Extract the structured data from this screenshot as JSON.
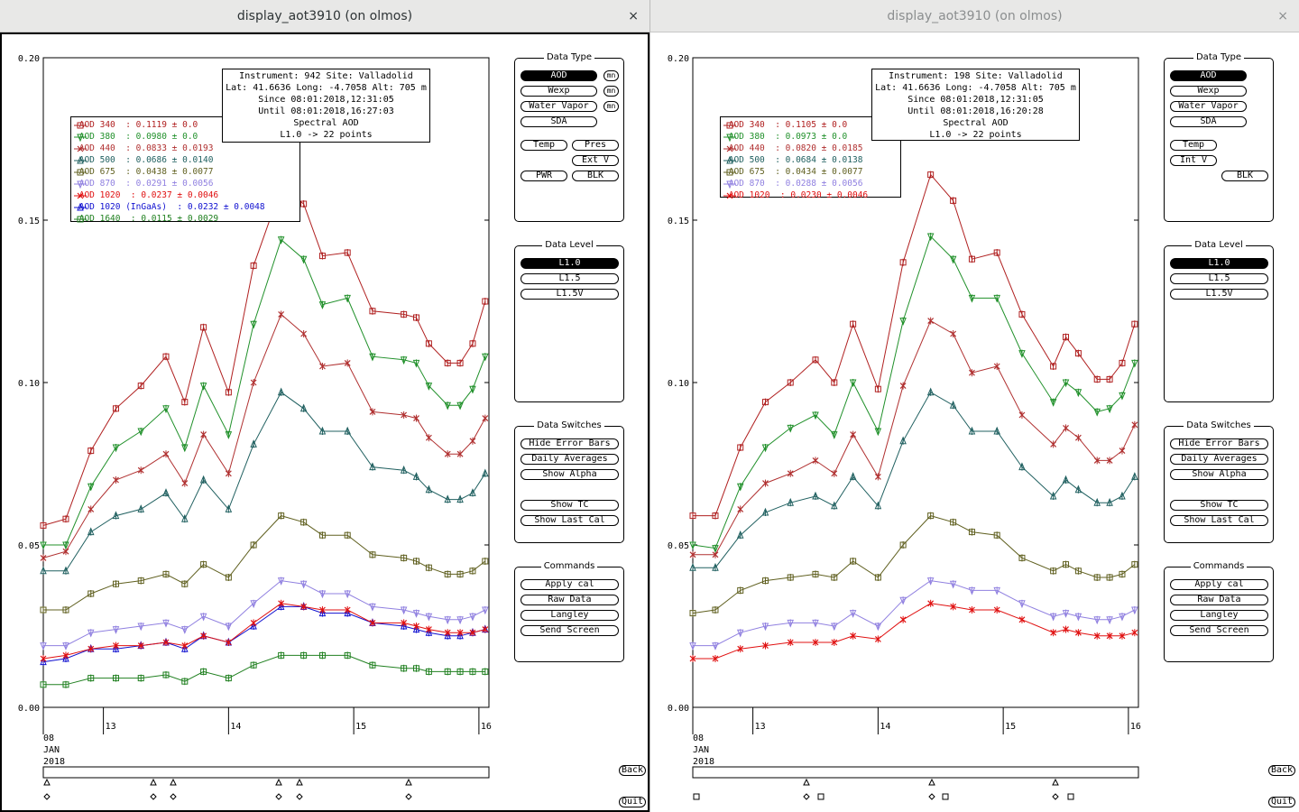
{
  "windows": [
    {
      "title": "display_aot3910 (on olmos)",
      "close": "×",
      "info": [
        "Instrument: 942 Site: Valladolid",
        "Lat: 41.6636 Long: -4.7058 Alt: 705 m",
        "Since 08:01:2018,12:31:05",
        "Until 08:01:2018,16:27:03",
        "Spectral AOD",
        "L1.0 -> 22 points"
      ],
      "legend": [
        {
          "label": "AOD 340  : 0.1119 ± 0.0",
          "color": "#b02020",
          "marker": "square"
        },
        {
          "label": "AOD 380  : 0.0980 ± 0.0",
          "color": "#20902a",
          "marker": "tri-down"
        },
        {
          "label": "AOD 440  : 0.0833 ± 0.0193",
          "color": "#b03030",
          "marker": "x"
        },
        {
          "label": "AOD 500  : 0.0686 ± 0.0140",
          "color": "#206060",
          "marker": "tri-up"
        },
        {
          "label": "AOD 675  : 0.0438 ± 0.0077",
          "color": "#606020",
          "marker": "square"
        },
        {
          "label": "AOD 870  : 0.0291 ± 0.0056",
          "color": "#9080e0",
          "marker": "tri-down"
        },
        {
          "label": "AOD 1020  : 0.0237 ± 0.0046",
          "color": "#e01010",
          "marker": "x"
        },
        {
          "label": "AOD 1020 (InGaAs)  : 0.0232 ± 0.0048",
          "color": "#1010d0",
          "marker": "tri-up"
        },
        {
          "label": "AOD 1640  : 0.0115 ± 0.0029",
          "color": "#208020",
          "marker": "square"
        }
      ],
      "data_type": {
        "title": "Data Type",
        "buttons": [
          {
            "label": "AOD",
            "mn": "mn",
            "selected": true
          },
          {
            "label": "Wexp",
            "mn": "mn"
          },
          {
            "label": "Water Vapor",
            "mn": "mn"
          },
          {
            "label": "SDA"
          },
          {
            "label": "Temp"
          },
          {
            "label": "Pres"
          },
          {
            "label": "Ext V"
          },
          {
            "label": "PWR"
          },
          {
            "label": "BLK"
          }
        ]
      },
      "data_level": {
        "title": "Data Level",
        "buttons": [
          "L1.0",
          "L1.5",
          "L1.5V"
        ]
      },
      "data_switches": {
        "title": "Data Switches",
        "buttons": [
          "Hide Error Bars",
          "Daily Averages",
          "Show Alpha",
          "Show TC",
          "Show Last Cal"
        ]
      },
      "commands": {
        "title": "Commands",
        "buttons": [
          "Apply cal",
          "Raw Data",
          "Langley",
          "Send Screen"
        ]
      },
      "back": "Back",
      "quit": "Quit"
    },
    {
      "title": "display_aot3910 (on olmos)",
      "close": "×",
      "info": [
        "Instrument: 198 Site: Valladolid",
        "Lat: 41.6636 Long: -4.7058 Alt: 705 m",
        "Since 08:01:2018,12:31:05",
        "Until 08:01:2018,16:20:28",
        "Spectral AOD",
        "L1.0 -> 22 points"
      ],
      "legend": [
        {
          "label": "AOD 340  : 0.1105 ± 0.0",
          "color": "#b02020",
          "marker": "square"
        },
        {
          "label": "AOD 380  : 0.0973 ± 0.0",
          "color": "#20902a",
          "marker": "tri-down"
        },
        {
          "label": "AOD 440  : 0.0820 ± 0.0185",
          "color": "#b03030",
          "marker": "x"
        },
        {
          "label": "AOD 500  : 0.0684 ± 0.0138",
          "color": "#206060",
          "marker": "tri-up"
        },
        {
          "label": "AOD 675  : 0.0434 ± 0.0077",
          "color": "#606020",
          "marker": "square"
        },
        {
          "label": "AOD 870  : 0.0288 ± 0.0056",
          "color": "#9080e0",
          "marker": "tri-down"
        },
        {
          "label": "AOD 1020  : 0.0230 ± 0.0046",
          "color": "#e01010",
          "marker": "x"
        }
      ],
      "data_type": {
        "title": "Data Type",
        "buttons": [
          {
            "label": "AOD",
            "selected": true
          },
          {
            "label": "Wexp"
          },
          {
            "label": "Water Vapor"
          },
          {
            "label": "SDA"
          },
          {
            "label": "Temp"
          },
          {
            "label": "Int V"
          },
          {
            "label": "BLK"
          }
        ]
      },
      "data_level": {
        "title": "Data Level",
        "buttons": [
          "L1.0",
          "L1.5",
          "L1.5V"
        ]
      },
      "data_switches": {
        "title": "Data Switches",
        "buttons": [
          "Hide Error Bars",
          "Daily Averages",
          "Show Alpha",
          "Show TC",
          "Show Last Cal"
        ]
      },
      "commands": {
        "title": "Commands",
        "buttons": [
          "Apply cal",
          "Raw Data",
          "Langley",
          "Send Screen"
        ]
      },
      "back": "Back",
      "quit": "Quit"
    }
  ],
  "chart_data": [
    {
      "type": "line",
      "ylim": [
        0,
        0.2
      ],
      "yticks": [
        "0.00",
        "0.05",
        "0.10",
        "0.15",
        "0.20"
      ],
      "xlabels": {
        "start": [
          "08",
          "JAN",
          "2018"
        ],
        "ticks": [
          "13",
          "14",
          "15",
          "16"
        ]
      },
      "x": [
        12.52,
        12.7,
        12.9,
        13.1,
        13.3,
        13.5,
        13.65,
        13.8,
        14.0,
        14.2,
        14.42,
        14.6,
        14.75,
        14.95,
        15.15,
        15.4,
        15.5,
        15.6,
        15.75,
        15.85,
        15.95,
        16.05
      ],
      "series": [
        {
          "name": "AOD 340",
          "color": "#b02020",
          "marker": "square",
          "values": [
            0.056,
            0.058,
            0.079,
            0.092,
            0.099,
            0.108,
            0.094,
            0.117,
            0.097,
            0.136,
            0.16,
            0.155,
            0.139,
            0.14,
            0.122,
            0.121,
            0.12,
            0.112,
            0.106,
            0.106,
            0.112,
            0.125
          ]
        },
        {
          "name": "AOD 380",
          "color": "#20902a",
          "marker": "tri-down",
          "values": [
            0.05,
            0.05,
            0.068,
            0.08,
            0.085,
            0.092,
            0.08,
            0.099,
            0.084,
            0.118,
            0.144,
            0.138,
            0.124,
            0.126,
            0.108,
            0.107,
            0.106,
            0.099,
            0.093,
            0.093,
            0.098,
            0.108
          ]
        },
        {
          "name": "AOD 440",
          "color": "#b03030",
          "marker": "x",
          "values": [
            0.046,
            0.048,
            0.061,
            0.07,
            0.073,
            0.078,
            0.069,
            0.084,
            0.072,
            0.1,
            0.121,
            0.115,
            0.105,
            0.106,
            0.091,
            0.09,
            0.089,
            0.083,
            0.078,
            0.078,
            0.082,
            0.089
          ]
        },
        {
          "name": "AOD 500",
          "color": "#206060",
          "marker": "tri-up",
          "values": [
            0.042,
            0.042,
            0.054,
            0.059,
            0.061,
            0.066,
            0.058,
            0.07,
            0.061,
            0.081,
            0.097,
            0.092,
            0.085,
            0.085,
            0.074,
            0.073,
            0.071,
            0.067,
            0.064,
            0.064,
            0.066,
            0.072
          ]
        },
        {
          "name": "AOD 675",
          "color": "#606020",
          "marker": "square",
          "values": [
            0.03,
            0.03,
            0.035,
            0.038,
            0.039,
            0.041,
            0.038,
            0.044,
            0.04,
            0.05,
            0.059,
            0.057,
            0.053,
            0.053,
            0.047,
            0.046,
            0.045,
            0.043,
            0.041,
            0.041,
            0.042,
            0.045
          ]
        },
        {
          "name": "AOD 870",
          "color": "#9080e0",
          "marker": "tri-down",
          "values": [
            0.019,
            0.019,
            0.023,
            0.024,
            0.025,
            0.026,
            0.024,
            0.028,
            0.025,
            0.032,
            0.039,
            0.038,
            0.035,
            0.035,
            0.031,
            0.03,
            0.029,
            0.028,
            0.027,
            0.027,
            0.028,
            0.03
          ]
        },
        {
          "name": "AOD 1020",
          "color": "#e01010",
          "marker": "x",
          "values": [
            0.015,
            0.016,
            0.018,
            0.019,
            0.019,
            0.02,
            0.019,
            0.022,
            0.02,
            0.026,
            0.032,
            0.031,
            0.03,
            0.03,
            0.026,
            0.026,
            0.025,
            0.024,
            0.023,
            0.023,
            0.023,
            0.024
          ]
        },
        {
          "name": "AOD 1020 (InGaAs)",
          "color": "#1010d0",
          "marker": "tri-up",
          "values": [
            0.014,
            0.015,
            0.018,
            0.018,
            0.019,
            0.02,
            0.018,
            0.022,
            0.02,
            0.025,
            0.031,
            0.031,
            0.029,
            0.029,
            0.026,
            0.025,
            0.024,
            0.023,
            0.022,
            0.022,
            0.023,
            0.024
          ]
        },
        {
          "name": "AOD 1640",
          "color": "#208020",
          "marker": "square",
          "values": [
            0.007,
            0.007,
            0.009,
            0.009,
            0.009,
            0.01,
            0.008,
            0.011,
            0.009,
            0.013,
            0.016,
            0.016,
            0.016,
            0.016,
            0.013,
            0.012,
            0.012,
            0.011,
            0.011,
            0.011,
            0.011,
            0.011
          ]
        }
      ]
    },
    {
      "type": "line",
      "ylim": [
        0,
        0.2
      ],
      "yticks": [
        "0.00",
        "0.05",
        "0.10",
        "0.15",
        "0.20"
      ],
      "xlabels": {
        "start": [
          "08",
          "JAN",
          "2018"
        ],
        "ticks": [
          "13",
          "14",
          "15",
          "16"
        ]
      },
      "x": [
        12.52,
        12.7,
        12.9,
        13.1,
        13.3,
        13.5,
        13.65,
        13.8,
        14.0,
        14.2,
        14.42,
        14.6,
        14.75,
        14.95,
        15.15,
        15.4,
        15.5,
        15.6,
        15.75,
        15.85,
        15.95,
        16.05
      ],
      "series": [
        {
          "name": "AOD 340",
          "color": "#b02020",
          "marker": "square",
          "values": [
            0.059,
            0.059,
            0.08,
            0.094,
            0.1,
            0.107,
            0.1,
            0.118,
            0.098,
            0.137,
            0.164,
            0.156,
            0.138,
            0.14,
            0.121,
            0.105,
            0.114,
            0.109,
            0.101,
            0.101,
            0.106,
            0.118
          ]
        },
        {
          "name": "AOD 380",
          "color": "#20902a",
          "marker": "tri-down",
          "values": [
            0.05,
            0.049,
            0.068,
            0.08,
            0.086,
            0.09,
            0.084,
            0.1,
            0.085,
            0.119,
            0.145,
            0.138,
            0.126,
            0.126,
            0.109,
            0.094,
            0.1,
            0.097,
            0.091,
            0.092,
            0.096,
            0.106
          ]
        },
        {
          "name": "AOD 440",
          "color": "#b03030",
          "marker": "x",
          "values": [
            0.047,
            0.047,
            0.061,
            0.069,
            0.072,
            0.076,
            0.072,
            0.084,
            0.071,
            0.099,
            0.119,
            0.115,
            0.103,
            0.105,
            0.09,
            0.081,
            0.086,
            0.083,
            0.076,
            0.076,
            0.079,
            0.087
          ]
        },
        {
          "name": "AOD 500",
          "color": "#206060",
          "marker": "tri-up",
          "values": [
            0.043,
            0.043,
            0.053,
            0.06,
            0.063,
            0.065,
            0.062,
            0.071,
            0.062,
            0.082,
            0.097,
            0.093,
            0.085,
            0.085,
            0.074,
            0.065,
            0.07,
            0.067,
            0.063,
            0.063,
            0.065,
            0.071
          ]
        },
        {
          "name": "AOD 675",
          "color": "#606020",
          "marker": "square",
          "values": [
            0.029,
            0.03,
            0.036,
            0.039,
            0.04,
            0.041,
            0.04,
            0.045,
            0.04,
            0.05,
            0.059,
            0.057,
            0.054,
            0.053,
            0.046,
            0.042,
            0.044,
            0.042,
            0.04,
            0.04,
            0.041,
            0.044
          ]
        },
        {
          "name": "AOD 870",
          "color": "#9080e0",
          "marker": "tri-down",
          "values": [
            0.019,
            0.019,
            0.023,
            0.025,
            0.026,
            0.026,
            0.025,
            0.029,
            0.025,
            0.033,
            0.039,
            0.038,
            0.036,
            0.036,
            0.032,
            0.028,
            0.029,
            0.028,
            0.027,
            0.027,
            0.028,
            0.03
          ]
        },
        {
          "name": "AOD 1020",
          "color": "#e01010",
          "marker": "x",
          "values": [
            0.015,
            0.015,
            0.018,
            0.019,
            0.02,
            0.02,
            0.02,
            0.022,
            0.021,
            0.027,
            0.032,
            0.031,
            0.03,
            0.03,
            0.027,
            0.023,
            0.024,
            0.023,
            0.022,
            0.022,
            0.022,
            0.023
          ]
        }
      ]
    }
  ]
}
